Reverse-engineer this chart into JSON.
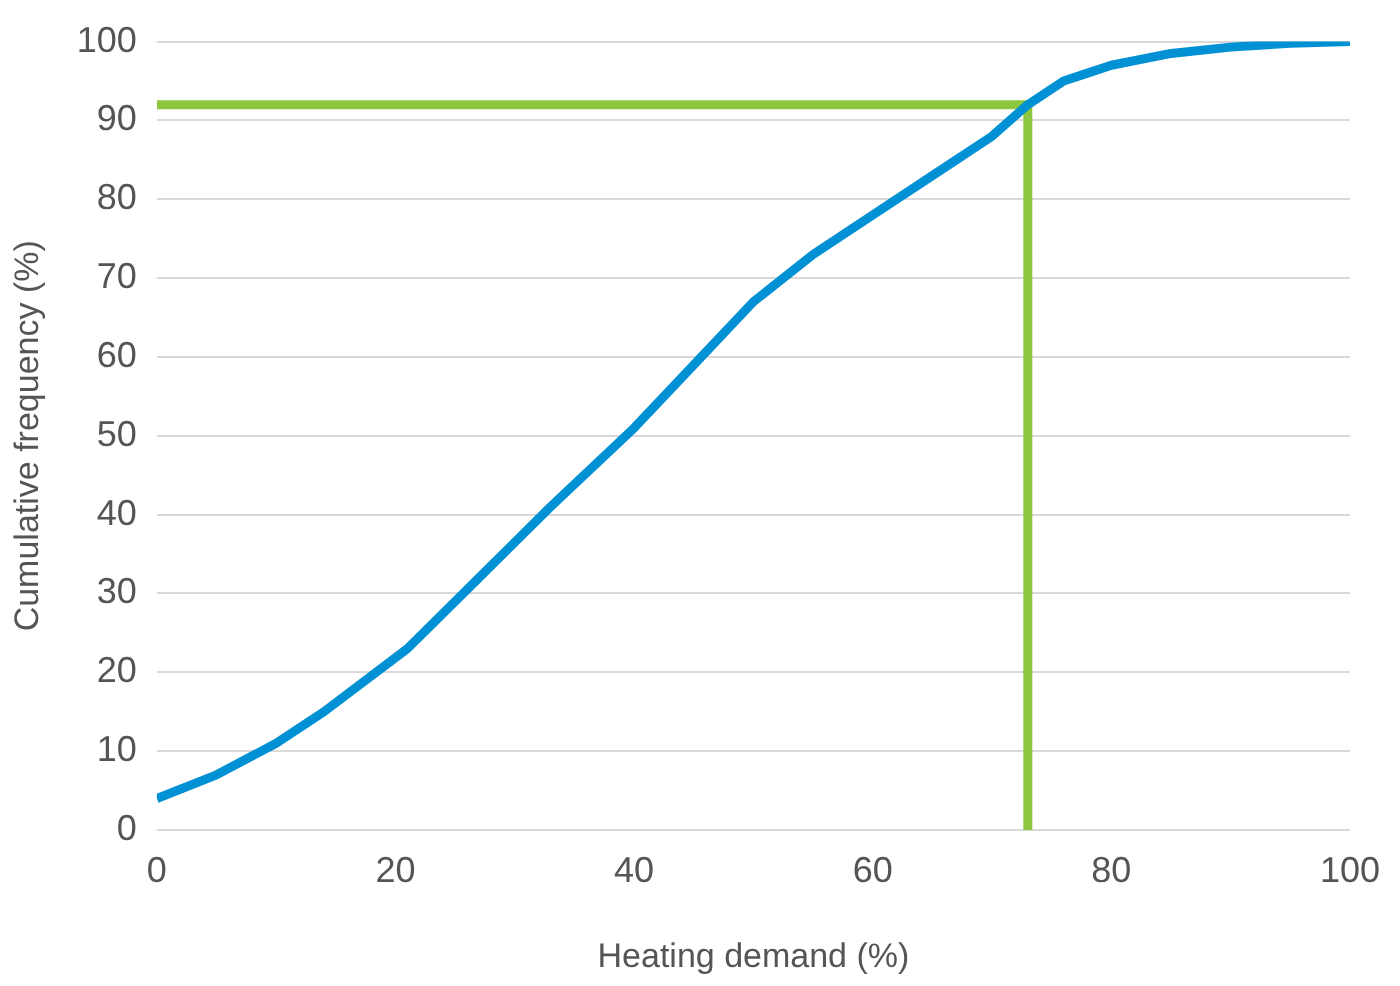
{
  "chart_data": {
    "type": "line",
    "xlabel": "Heating demand (%)",
    "ylabel": "Cumulative frequency (%)",
    "xlim": [
      0,
      100
    ],
    "xticks": [
      0,
      20,
      40,
      60,
      80,
      100
    ],
    "ylim": [
      0,
      100
    ],
    "yticks": [
      0,
      10,
      20,
      30,
      40,
      50,
      60,
      70,
      80,
      90,
      100
    ],
    "grid": "y",
    "legend": false,
    "marker": "none",
    "series": [
      {
        "color": "#0091d5",
        "x": [
          0,
          5,
          10,
          14,
          21,
          27,
          33,
          40,
          45,
          50,
          55,
          60,
          65,
          70,
          73,
          76,
          78,
          80,
          85,
          90,
          95,
          100
        ],
        "values": [
          4,
          7,
          11,
          15,
          23,
          32,
          41,
          51,
          59,
          67,
          73,
          78,
          83,
          88,
          92,
          95,
          96,
          97,
          98.5,
          99.3,
          99.8,
          100
        ]
      },
      {
        "color": "#8dc63f",
        "x": [
          0,
          73,
          73
        ],
        "values": [
          92,
          92,
          0
        ]
      }
    ]
  }
}
